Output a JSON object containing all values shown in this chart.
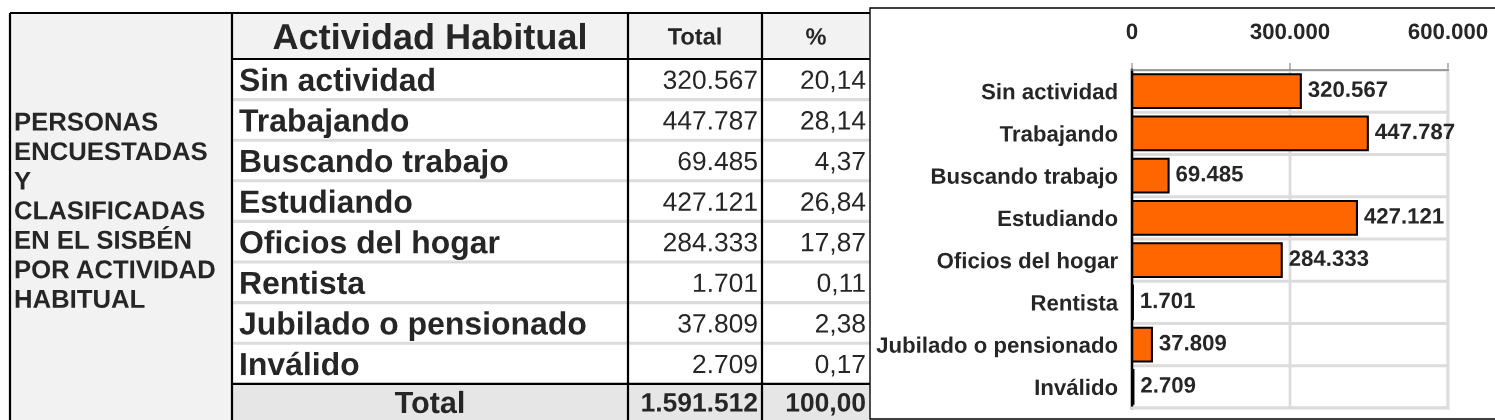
{
  "chart_data": [
    {
      "type": "other",
      "title": "PERSONAS\nENCUESTADAS\nY\nCLASIFICADAS\nEN EL SISBÉN\nPOR ACTIVIDAD\nHABITUAL",
      "ylabel": "Actividad Habitual",
      "categories": [
        "Sin actividad",
        "Trabajando",
        "Buscando trabajo",
        "Estudiando",
        "Oficios del hogar",
        "Rentista",
        "Jubilado o pensionado",
        "Inválido"
      ],
      "series": [
        {
          "name": "Total",
          "values": [
            320567,
            447787,
            69485,
            427121,
            284333,
            1701,
            37809,
            2709
          ],
          "value_labels": [
            "320.567",
            "447.787",
            "69.485",
            "427.121",
            "284.333",
            "1.701",
            "37.809",
            "2.709"
          ]
        },
        {
          "name": "%",
          "values": [
            20.14,
            28.14,
            4.37,
            26.84,
            17.87,
            0.11,
            2.38,
            0.17
          ],
          "value_labels": [
            "20,14",
            "28,14",
            "4,37",
            "26,84",
            "17,87",
            "0,11",
            "2,38",
            "0,17"
          ]
        }
      ],
      "totals": [
        "1.591.512",
        "100,00"
      ],
      "annotations": [
        "Total"
      ]
    },
    {
      "type": "bar",
      "orientation": "horizontal",
      "categories": [
        "Sin actividad",
        "Trabajando",
        "Buscando trabajo",
        "Estudiando",
        "Oficios del hogar",
        "Rentista",
        "Jubilado o pensionado",
        "Inválido"
      ],
      "values": [
        320567,
        447787,
        69485,
        427121,
        284333,
        1701,
        37809,
        2709
      ],
      "color": "#ff6600",
      "value_labels": [
        "320.567",
        "447.787",
        "69.485",
        "427.121",
        "284.333",
        "1.701",
        "37.809",
        "2.709"
      ],
      "xlim": [
        0,
        600000
      ],
      "xticks": [
        0,
        {
          "value": 300000,
          "label": "300.000"
        },
        {
          "value": 600000,
          "label": "600.000"
        }
      ],
      "grid": true
    }
  ]
}
